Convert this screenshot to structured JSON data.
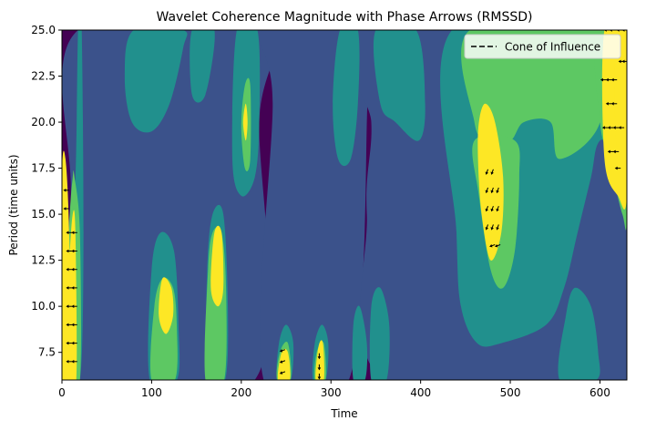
{
  "chart_data": {
    "type": "heatmap",
    "title": "Wavelet Coherence Magnitude with Phase Arrows (RMSSD)",
    "xlabel": "Time",
    "ylabel": "Period (time units)",
    "xlim": [
      0,
      630
    ],
    "ylim": [
      6,
      25
    ],
    "x_ticks": [
      "0",
      "100",
      "200",
      "300",
      "400",
      "500",
      "600"
    ],
    "y_ticks": [
      "7.5",
      "10.0",
      "12.5",
      "15.0",
      "17.5",
      "20.0",
      "22.5",
      "25.0"
    ],
    "grid": false,
    "legend": {
      "placement": "top-right",
      "entries": [
        "Cone of Influence"
      ]
    },
    "colormap": [
      "#440154",
      "#3b528b",
      "#21908d",
      "#5dc863",
      "#fde725"
    ],
    "levels": [
      0,
      0.2,
      0.4,
      0.6,
      0.8,
      1.0
    ],
    "regions": [
      {
        "level": 1,
        "points": [
          [
            8,
            6
          ],
          [
            10,
            16
          ],
          [
            18,
            25
          ],
          [
            225,
            25
          ],
          [
            220,
            20
          ],
          [
            215,
            6
          ]
        ]
      },
      {
        "level": 1,
        "points": [
          [
            225,
            25
          ],
          [
            235,
            21
          ],
          [
            225,
            6
          ],
          [
            320,
            6
          ],
          [
            340,
            20
          ],
          [
            330,
            25
          ]
        ]
      },
      {
        "level": 1,
        "points": [
          [
            330,
            25
          ],
          [
            345,
            20
          ],
          [
            340,
            15
          ],
          [
            360,
            6
          ],
          [
            630,
            6
          ],
          [
            630,
            25
          ]
        ]
      },
      {
        "level": 2,
        "points": [
          [
            5,
            6
          ],
          [
            8,
            14
          ],
          [
            15,
            17
          ],
          [
            18,
            25
          ],
          [
            22,
            25
          ],
          [
            24,
            13
          ],
          [
            20,
            6
          ]
        ]
      },
      {
        "level": 2,
        "points": [
          [
            80,
            25
          ],
          [
            70,
            22.5
          ],
          [
            78,
            20
          ],
          [
            100,
            19.5
          ],
          [
            120,
            21
          ],
          [
            135,
            24
          ],
          [
            135,
            25
          ]
        ]
      },
      {
        "level": 2,
        "points": [
          [
            145,
            25
          ],
          [
            145,
            21.5
          ],
          [
            160,
            21.5
          ],
          [
            170,
            25
          ]
        ]
      },
      {
        "level": 2,
        "points": [
          [
            195,
            25
          ],
          [
            190,
            18
          ],
          [
            200,
            16
          ],
          [
            215,
            17
          ],
          [
            220,
            20
          ],
          [
            218,
            25
          ]
        ]
      },
      {
        "level": 2,
        "points": [
          [
            98,
            6
          ],
          [
            100,
            12
          ],
          [
            110,
            14
          ],
          [
            125,
            13
          ],
          [
            130,
            9
          ],
          [
            128,
            6
          ]
        ]
      },
      {
        "level": 2,
        "points": [
          [
            162,
            6
          ],
          [
            162,
            12
          ],
          [
            168,
            15
          ],
          [
            180,
            15
          ],
          [
            185,
            10
          ],
          [
            182,
            6
          ]
        ]
      },
      {
        "level": 2,
        "points": [
          [
            240,
            6
          ],
          [
            242,
            8
          ],
          [
            250,
            9
          ],
          [
            258,
            8
          ],
          [
            255,
            6
          ]
        ]
      },
      {
        "level": 2,
        "points": [
          [
            280,
            6
          ],
          [
            282,
            8
          ],
          [
            290,
            9
          ],
          [
            297,
            8
          ],
          [
            294,
            6
          ]
        ]
      },
      {
        "level": 2,
        "points": [
          [
            325,
            6
          ],
          [
            325,
            9
          ],
          [
            332,
            10
          ],
          [
            340,
            8
          ],
          [
            338,
            6
          ]
        ]
      },
      {
        "level": 2,
        "points": [
          [
            345,
            6
          ],
          [
            345,
            10
          ],
          [
            355,
            11
          ],
          [
            365,
            9
          ],
          [
            362,
            6
          ]
        ]
      },
      {
        "level": 2,
        "points": [
          [
            310,
            25
          ],
          [
            302,
            21
          ],
          [
            308,
            18
          ],
          [
            322,
            18
          ],
          [
            330,
            21
          ],
          [
            330,
            25
          ]
        ]
      },
      {
        "level": 2,
        "points": [
          [
            350,
            25
          ],
          [
            355,
            21
          ],
          [
            372,
            20
          ],
          [
            398,
            19
          ],
          [
            405,
            21
          ],
          [
            395,
            25
          ]
        ]
      },
      {
        "level": 2,
        "points": [
          [
            435,
            25
          ],
          [
            440,
            14
          ],
          [
            445,
            10
          ],
          [
            463,
            8
          ],
          [
            490,
            8
          ],
          [
            540,
            9
          ],
          [
            560,
            11
          ],
          [
            575,
            14
          ],
          [
            590,
            17
          ],
          [
            600,
            19
          ],
          [
            630,
            19
          ],
          [
            630,
            25
          ]
        ]
      },
      {
        "level": 2,
        "points": [
          [
            555,
            6
          ],
          [
            562,
            9.5
          ],
          [
            572,
            11
          ],
          [
            590,
            10
          ],
          [
            598,
            7.5
          ],
          [
            596,
            6
          ]
        ]
      },
      {
        "level": 3,
        "points": [
          [
            455,
            25
          ],
          [
            460,
            20
          ],
          [
            475,
            19
          ],
          [
            500,
            19
          ],
          [
            515,
            20
          ],
          [
            545,
            20
          ],
          [
            555,
            18
          ],
          [
            600,
            20
          ],
          [
            600,
            25
          ]
        ]
      },
      {
        "level": 3,
        "points": [
          [
            460,
            19
          ],
          [
            465,
            16
          ],
          [
            478,
            12
          ],
          [
            492,
            11
          ],
          [
            505,
            13
          ],
          [
            510,
            17
          ],
          [
            505,
            19
          ]
        ]
      },
      {
        "level": 3,
        "points": [
          [
            595,
            25
          ],
          [
            600,
            20
          ],
          [
            610,
            18
          ],
          [
            625,
            15
          ],
          [
            630,
            15
          ],
          [
            630,
            25
          ]
        ]
      },
      {
        "level": 3,
        "points": [
          [
            100,
            6
          ],
          [
            103,
            10
          ],
          [
            112,
            11.5
          ],
          [
            124,
            11
          ],
          [
            128,
            9
          ],
          [
            126,
            6
          ]
        ]
      },
      {
        "level": 3,
        "points": [
          [
            160,
            6
          ],
          [
            163,
            12
          ],
          [
            168,
            14
          ],
          [
            178,
            14
          ],
          [
            183,
            11
          ],
          [
            181,
            6
          ]
        ]
      },
      {
        "level": 3,
        "points": [
          [
            5,
            6
          ],
          [
            8,
            14
          ],
          [
            12,
            17
          ],
          [
            14,
            17
          ],
          [
            20,
            14
          ],
          [
            20,
            6
          ]
        ]
      },
      {
        "level": 3,
        "points": [
          [
            200,
            19.8
          ],
          [
            204,
            22
          ],
          [
            210,
            22
          ],
          [
            210,
            18
          ],
          [
            204,
            17.5
          ]
        ]
      },
      {
        "level": 3,
        "points": [
          [
            240,
            6
          ],
          [
            243,
            7.5
          ],
          [
            252,
            8
          ],
          [
            255,
            6
          ]
        ]
      },
      {
        "level": 3,
        "points": [
          [
            282,
            6
          ],
          [
            284,
            7.5
          ],
          [
            292,
            8
          ],
          [
            294,
            6
          ]
        ]
      },
      {
        "level": 4,
        "points": [
          [
            465,
            20
          ],
          [
            472,
            21
          ],
          [
            483,
            20
          ],
          [
            492,
            17
          ],
          [
            490,
            14
          ],
          [
            478,
            12.5
          ],
          [
            468,
            15
          ],
          [
            464,
            18
          ]
        ]
      },
      {
        "level": 4,
        "points": [
          [
            605,
            25
          ],
          [
            605,
            18
          ],
          [
            620,
            16
          ],
          [
            630,
            16
          ],
          [
            630,
            25
          ]
        ]
      },
      {
        "level": 4,
        "points": [
          [
            166,
            11
          ],
          [
            170,
            14
          ],
          [
            178,
            14
          ],
          [
            180,
            11
          ],
          [
            174,
            10
          ]
        ]
      },
      {
        "level": 4,
        "points": [
          [
            108,
            9.5
          ],
          [
            112,
            11.5
          ],
          [
            122,
            11
          ],
          [
            124,
            9.5
          ],
          [
            116,
            8.5
          ]
        ]
      },
      {
        "level": 4,
        "points": [
          [
            6,
            6
          ],
          [
            8,
            12
          ],
          [
            12,
            15
          ],
          [
            15,
            14
          ],
          [
            16,
            6
          ]
        ]
      },
      {
        "level": 4,
        "points": [
          [
            241,
            6
          ],
          [
            245,
            7.5
          ],
          [
            252,
            7.5
          ],
          [
            254,
            6
          ]
        ]
      },
      {
        "level": 4,
        "points": [
          [
            283,
            6
          ],
          [
            286,
            7.8
          ],
          [
            291,
            8
          ],
          [
            292,
            6
          ]
        ]
      },
      {
        "level": 4,
        "points": [
          [
            202,
            20
          ],
          [
            205,
            21
          ],
          [
            207,
            20
          ],
          [
            205,
            19
          ]
        ]
      },
      {
        "level": 5,
        "points": [
          [
            0,
            6
          ],
          [
            0,
            17
          ],
          [
            4,
            18
          ],
          [
            8,
            14
          ],
          [
            10,
            6
          ]
        ]
      },
      {
        "level": 5,
        "points": [
          [
            618,
            25
          ],
          [
            618,
            19
          ],
          [
            630,
            19
          ],
          [
            630,
            25
          ]
        ]
      }
    ],
    "arrows": [
      {
        "x": 5,
        "y": 16.3,
        "angle": 180
      },
      {
        "x": 5,
        "y": 15.3,
        "angle": 180
      },
      {
        "x": 8,
        "y": 14.0,
        "angle": 180
      },
      {
        "x": 8,
        "y": 13.0,
        "angle": 180
      },
      {
        "x": 8,
        "y": 12.0,
        "angle": 180
      },
      {
        "x": 8,
        "y": 11.0,
        "angle": 180
      },
      {
        "x": 8,
        "y": 10.0,
        "angle": 180
      },
      {
        "x": 8,
        "y": 9.0,
        "angle": 180
      },
      {
        "x": 8,
        "y": 8.0,
        "angle": 180
      },
      {
        "x": 8,
        "y": 7.0,
        "angle": 180
      },
      {
        "x": 14,
        "y": 14.0,
        "angle": 180
      },
      {
        "x": 14,
        "y": 13.0,
        "angle": 180
      },
      {
        "x": 14,
        "y": 12.0,
        "angle": 180
      },
      {
        "x": 14,
        "y": 11.0,
        "angle": 180
      },
      {
        "x": 14,
        "y": 10.0,
        "angle": 180
      },
      {
        "x": 14,
        "y": 9.0,
        "angle": 180
      },
      {
        "x": 14,
        "y": 8.0,
        "angle": 180
      },
      {
        "x": 14,
        "y": 7.0,
        "angle": 180
      },
      {
        "x": 246,
        "y": 7.6,
        "angle": 200
      },
      {
        "x": 246,
        "y": 7.0,
        "angle": 200
      },
      {
        "x": 246,
        "y": 6.4,
        "angle": 200
      },
      {
        "x": 287,
        "y": 7.3,
        "angle": 270
      },
      {
        "x": 287,
        "y": 6.7,
        "angle": 270
      },
      {
        "x": 287,
        "y": 6.2,
        "angle": 270
      },
      {
        "x": 474,
        "y": 17.3,
        "angle": 250
      },
      {
        "x": 480,
        "y": 17.3,
        "angle": 250
      },
      {
        "x": 474,
        "y": 16.3,
        "angle": 250
      },
      {
        "x": 480,
        "y": 16.3,
        "angle": 250
      },
      {
        "x": 486,
        "y": 16.3,
        "angle": 250
      },
      {
        "x": 474,
        "y": 15.3,
        "angle": 250
      },
      {
        "x": 480,
        "y": 15.3,
        "angle": 250
      },
      {
        "x": 486,
        "y": 15.3,
        "angle": 250
      },
      {
        "x": 474,
        "y": 14.3,
        "angle": 250
      },
      {
        "x": 480,
        "y": 14.3,
        "angle": 250
      },
      {
        "x": 486,
        "y": 14.3,
        "angle": 250
      },
      {
        "x": 480,
        "y": 13.3,
        "angle": 200
      },
      {
        "x": 486,
        "y": 13.3,
        "angle": 200
      },
      {
        "x": 608,
        "y": 25.0,
        "angle": 180
      },
      {
        "x": 614,
        "y": 25.0,
        "angle": 180
      },
      {
        "x": 622,
        "y": 25.0,
        "angle": 180
      },
      {
        "x": 628,
        "y": 25.0,
        "angle": 180
      },
      {
        "x": 624,
        "y": 23.3,
        "angle": 180
      },
      {
        "x": 628,
        "y": 23.3,
        "angle": 180
      },
      {
        "x": 604,
        "y": 22.3,
        "angle": 180
      },
      {
        "x": 610,
        "y": 22.3,
        "angle": 180
      },
      {
        "x": 616,
        "y": 22.3,
        "angle": 180
      },
      {
        "x": 610,
        "y": 21.0,
        "angle": 180
      },
      {
        "x": 616,
        "y": 21.0,
        "angle": 180
      },
      {
        "x": 606,
        "y": 19.7,
        "angle": 180
      },
      {
        "x": 612,
        "y": 19.7,
        "angle": 180
      },
      {
        "x": 618,
        "y": 19.7,
        "angle": 180
      },
      {
        "x": 624,
        "y": 19.7,
        "angle": 180
      },
      {
        "x": 612,
        "y": 18.4,
        "angle": 180
      },
      {
        "x": 618,
        "y": 18.4,
        "angle": 180
      },
      {
        "x": 620,
        "y": 17.5,
        "angle": 180
      }
    ]
  }
}
